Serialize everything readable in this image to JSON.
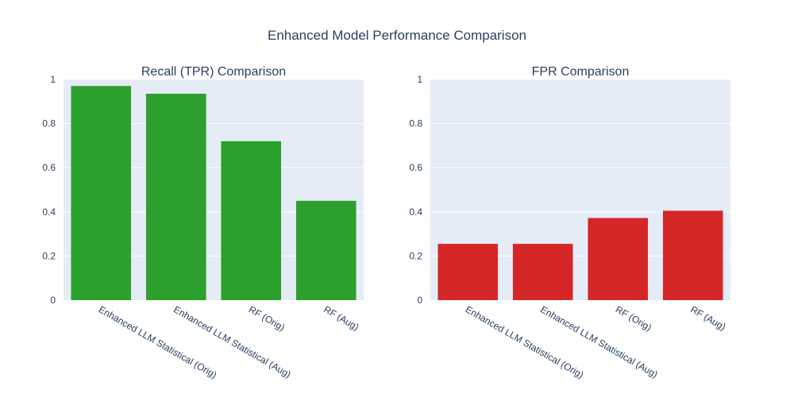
{
  "title": "Enhanced Model Performance Comparison",
  "chart_data": [
    {
      "type": "bar",
      "title": "Recall (TPR) Comparison",
      "categories": [
        "Enhanced LLM Statistical (Orig)",
        "Enhanced LLM Statistical (Aug)",
        "RF (Orig)",
        "RF (Aug)"
      ],
      "values": [
        0.97,
        0.935,
        0.72,
        0.45
      ],
      "ylim": [
        0,
        1
      ],
      "yticks": [
        "0",
        "0.2",
        "0.4",
        "0.6",
        "0.8",
        "1"
      ],
      "color": "#2ca02c",
      "grid": true
    },
    {
      "type": "bar",
      "title": "FPR Comparison",
      "categories": [
        "Enhanced LLM Statistical (Orig)",
        "Enhanced LLM Statistical (Aug)",
        "RF (Orig)",
        "RF (Aug)"
      ],
      "values": [
        0.255,
        0.255,
        0.372,
        0.405
      ],
      "ylim": [
        0,
        1
      ],
      "yticks": [
        "0",
        "0.2",
        "0.4",
        "0.6",
        "0.8",
        "1"
      ],
      "color": "#d62728",
      "grid": true
    }
  ]
}
